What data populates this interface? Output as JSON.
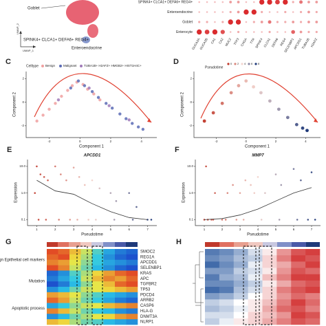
{
  "panel_a": {
    "labels": [
      "Goblet",
      "SPINK4+ CLCA1+ DEFA6+ REG4+",
      "Enteroendocrine"
    ],
    "x_axis": "UMAP_1",
    "y_axis": "UMAP_2"
  },
  "panel_b": {
    "rows": [
      "SPINK4+ CLCA1+ DEFA6+ REG4+",
      "Enteroendocrine",
      "Goblet",
      "Enterocyte"
    ],
    "genes": [
      "GUCA2A",
      "GUCA2B",
      "CA1",
      "CA2",
      "MUC2",
      "TFF3",
      "CHGA",
      "TTR",
      "SPINK4",
      "CLCA1",
      "DEFA6",
      "REG4",
      "SELENBP1",
      "APCDD1",
      "TUBA1B",
      "H2AFZ"
    ],
    "values": [
      [
        0.1,
        0.1,
        0.1,
        0.1,
        0.3,
        0.3,
        0.1,
        0.1,
        0.9,
        0.9,
        0.8,
        0.9,
        0.2,
        0.5,
        0.3,
        0.3
      ],
      [
        0.1,
        0.1,
        0.1,
        0.1,
        0.2,
        0.3,
        0.9,
        0.9,
        0.2,
        0.1,
        0.1,
        0.2,
        0.1,
        0.2,
        0.3,
        0.2
      ],
      [
        0.2,
        0.2,
        0.1,
        0.2,
        0.9,
        0.9,
        0.1,
        0.2,
        0.3,
        0.5,
        0.2,
        0.2,
        0.3,
        0.2,
        0.3,
        0.3
      ],
      [
        0.9,
        0.8,
        0.9,
        0.7,
        0.1,
        0.2,
        0.1,
        0.1,
        0.1,
        0.2,
        0.1,
        0.1,
        0.6,
        0.3,
        0.2,
        0.2
      ]
    ],
    "color": "#d7191c"
  },
  "panel_c": {
    "label": "C",
    "legend_title": "Celltype",
    "xlabel": "Component 1",
    "ylabel": "Component 2",
    "xlim": [
      -3.5,
      5
    ],
    "ylim": [
      -3,
      2.6
    ],
    "xticks": [
      -2,
      0,
      2,
      4
    ],
    "yticks": [
      -2,
      0,
      2
    ],
    "series": [
      {
        "name": "Benign",
        "color": "#f0a0a0",
        "x": [
          -2.8,
          -2.4,
          -2,
          -1.6,
          -1.2,
          -0.8,
          -0.5,
          -0.2,
          0.2,
          0.5,
          0.9,
          1.3
        ],
        "y": [
          -1.6,
          -1.1,
          -0.6,
          -0.1,
          0.5,
          1.0,
          1.4,
          1.7,
          1.5,
          1.1,
          0.7,
          0.2
        ]
      },
      {
        "name": "Malignant",
        "color": "#5b6bb5",
        "x": [
          -0.6,
          -0.1,
          0.3,
          0.8,
          1.2,
          1.7,
          2.1,
          2.6,
          3.0,
          3.4,
          3.8,
          4.1
        ],
        "y": [
          1.2,
          1.8,
          1.4,
          0.9,
          0.4,
          -0.1,
          -0.5,
          -1.0,
          -1.4,
          -1.8,
          -2.1,
          -2.3
        ]
      },
      {
        "name": "TUBA1B+ H2AFZ+ HMGB2+ HIST1H4C+",
        "color": "#a07ab8",
        "x": [
          -1.4,
          0.6,
          1.9,
          3.2
        ],
        "y": [
          0.2,
          1.2,
          -0.3,
          -1.5
        ]
      }
    ]
  },
  "panel_d": {
    "label": "D",
    "legend_title": "Pseudotime",
    "legend_ticks": [
      0,
      2,
      4,
      6,
      8
    ],
    "xlabel": "Component 1",
    "ylabel": "Component 2",
    "xlim": [
      -3.5,
      5
    ],
    "ylim": [
      -3,
      2.6
    ],
    "xticks": [
      -2,
      0,
      2,
      4
    ],
    "yticks": [
      -2,
      0,
      2
    ],
    "colors": [
      "#c0392b",
      "#f3d6d0",
      "#1f3a7a"
    ],
    "x": [
      -2.8,
      -2.2,
      -1.6,
      -1.0,
      -0.5,
      0,
      0.5,
      1.0,
      1.6,
      2.2,
      2.8,
      3.4,
      3.8,
      4.1
    ],
    "y": [
      -1.6,
      -0.9,
      -0.1,
      0.8,
      1.4,
      1.8,
      1.3,
      0.8,
      0.1,
      -0.6,
      -1.3,
      -1.9,
      -2.2,
      -2.4
    ],
    "t": [
      0.2,
      0.8,
      1.5,
      2.2,
      2.8,
      3.3,
      3.8,
      4.4,
      5.0,
      5.6,
      6.3,
      7.0,
      7.6,
      8.0
    ]
  },
  "panel_e": {
    "label": "E",
    "title": "APCDD1",
    "xlabel": "Pseudotime",
    "ylabel": "Expression",
    "log_y": true,
    "xlim": [
      0.5,
      7.5
    ],
    "ylim": [
      0.06,
      18
    ],
    "xticks": [
      1,
      2,
      3,
      4,
      5,
      6,
      7
    ],
    "yticks": [
      0.1,
      {
        "value": 1,
        "label": "1.0"
      },
      {
        "value": 10,
        "label": "10.0"
      }
    ],
    "x": [
      1,
      1.2,
      1.4,
      1.6,
      2,
      2.3,
      2.6,
      3,
      3.3,
      3.6,
      4,
      4.4,
      5,
      5.3,
      6,
      6.4,
      7,
      1.1,
      1.5,
      2.2,
      2.8,
      3.2,
      3.8,
      4.2,
      5.2,
      6.2,
      7.2,
      0.9
    ],
    "y": [
      10,
      5,
      4,
      3,
      10,
      5,
      3,
      9,
      4,
      2,
      3,
      1.5,
      1,
      0.5,
      1,
      0.3,
      0.1,
      0.1,
      0.1,
      0.1,
      0.1,
      0.1,
      0.1,
      0.1,
      0.1,
      0.1,
      0.1,
      1
    ],
    "trend_x": [
      1,
      2,
      3,
      4,
      5,
      6,
      7
    ],
    "trend_y": [
      3,
      1.2,
      0.9,
      0.4,
      0.2,
      0.12,
      0.1
    ]
  },
  "panel_f": {
    "label": "F",
    "title": "MMP7",
    "xlabel": "Pseudotime",
    "ylabel": "Expression",
    "log_y": true,
    "xlim": [
      0.5,
      7.5
    ],
    "ylim": [
      0.06,
      18
    ],
    "xticks": [
      1,
      2,
      3,
      4,
      5,
      6,
      7
    ],
    "yticks": [
      0.1,
      {
        "value": 1,
        "label": "1.0"
      },
      {
        "value": 10,
        "label": "10.0"
      }
    ],
    "x": [
      1,
      1.2,
      1.4,
      1.6,
      2,
      2.3,
      2.6,
      3,
      3.3,
      3.6,
      4,
      4.4,
      5,
      5.3,
      6,
      6.4,
      7,
      1.1,
      1.5,
      2.2,
      2.8,
      3.2,
      3.8,
      4.2,
      5.2,
      6.2,
      7.2,
      6.8
    ],
    "y": [
      0.1,
      0.1,
      0.1,
      1,
      0.1,
      1,
      2,
      1,
      3,
      2,
      4,
      1,
      5,
      2,
      8,
      3,
      6,
      10,
      0.1,
      0.1,
      0.1,
      0.1,
      1,
      0.1,
      0.1,
      0.1,
      0.1,
      0.1
    ],
    "trend_x": [
      1,
      2,
      3,
      4,
      5,
      6,
      7
    ],
    "trend_y": [
      0.1,
      0.11,
      0.15,
      0.25,
      0.5,
      1.0,
      1.6
    ]
  },
  "panel_g": {
    "label": "G",
    "groups": [
      "Benign Epithelial cell markers",
      "Mutation",
      "Apoptotic process"
    ],
    "rows": [
      "SMOC2",
      "REG1A",
      "APCDD1",
      "SELENBP1",
      "KRAS",
      "APC",
      "TGFBR2",
      "TP53",
      "PDCD4",
      "ARRB2",
      "CASP6",
      "HLA-G",
      "DNMT3A",
      "NLRP1"
    ],
    "values": [
      [
        0.9,
        0.8,
        0.5,
        0.2,
        -0.2,
        -0.5,
        -0.7,
        -0.8
      ],
      [
        0.8,
        0.9,
        0.4,
        0.1,
        -0.3,
        -0.6,
        -0.8,
        -0.9
      ],
      [
        0.7,
        0.6,
        0.3,
        0,
        -0.3,
        -0.5,
        -0.6,
        -0.7
      ],
      [
        0.9,
        0.7,
        0.2,
        -0.1,
        -0.4,
        -0.6,
        -0.8,
        -0.9
      ],
      [
        -0.8,
        -0.6,
        -0.2,
        0.1,
        0.4,
        0.6,
        0.8,
        0.9
      ],
      [
        -0.7,
        -0.5,
        -0.3,
        0.2,
        0.5,
        0.7,
        0.6,
        0.8
      ],
      [
        -0.9,
        -0.7,
        -0.4,
        0,
        0.3,
        0.5,
        0.8,
        0.9
      ],
      [
        -0.6,
        -0.4,
        -0.1,
        0.2,
        0.3,
        0.4,
        0.5,
        0.6
      ],
      [
        0.6,
        0.5,
        0.3,
        0,
        -0.2,
        -0.4,
        -0.5,
        -0.6
      ],
      [
        0.8,
        0.6,
        0.2,
        -0.1,
        -0.3,
        -0.5,
        -0.7,
        -0.8
      ],
      [
        -0.5,
        -0.3,
        0,
        0.2,
        0.3,
        0.5,
        0.6,
        0.7
      ],
      [
        0.7,
        0.5,
        0.2,
        -0.1,
        -0.3,
        -0.4,
        -0.6,
        -0.7
      ],
      [
        -0.6,
        -0.4,
        -0.1,
        0.1,
        0.3,
        0.4,
        0.6,
        0.7
      ],
      [
        0.5,
        0.4,
        0.1,
        -0.1,
        -0.2,
        -0.4,
        -0.5,
        -0.6
      ]
    ]
  },
  "panel_h": {
    "label": "H",
    "values": [
      [
        -0.8,
        -0.7,
        -0.5,
        -0.2,
        0.1,
        0.5,
        0.8,
        0.9
      ],
      [
        -0.7,
        -0.6,
        -0.4,
        -0.3,
        0.2,
        0.6,
        0.9,
        0.8
      ],
      [
        -0.9,
        -0.7,
        -0.5,
        -0.1,
        0.2,
        0.4,
        0.7,
        0.9
      ],
      [
        -0.6,
        -0.6,
        -0.3,
        -0.2,
        0.1,
        0.5,
        0.8,
        0.7
      ],
      [
        -0.8,
        -0.5,
        -0.4,
        -0.1,
        0.3,
        0.6,
        0.9,
        0.9
      ],
      [
        -0.7,
        -0.7,
        -0.5,
        -0.3,
        0.1,
        0.4,
        0.7,
        0.8
      ],
      [
        -0.9,
        -0.8,
        -0.4,
        -0.2,
        0.2,
        0.6,
        0.8,
        0.9
      ],
      [
        -0.6,
        -0.5,
        -0.3,
        0,
        0.2,
        0.5,
        0.7,
        0.6
      ],
      [
        -0.3,
        -0.2,
        0,
        0.1,
        0.3,
        0.6,
        0.9,
        0.7
      ],
      [
        -0.4,
        -0.3,
        -0.1,
        0.1,
        0.4,
        0.7,
        0.8,
        0.6
      ],
      [
        -0.2,
        -0.2,
        0,
        0.2,
        0.3,
        0.5,
        0.9,
        0.8
      ],
      [
        -0.3,
        -0.1,
        0.1,
        0.2,
        0.4,
        0.6,
        0.8,
        0.7
      ]
    ]
  }
}
